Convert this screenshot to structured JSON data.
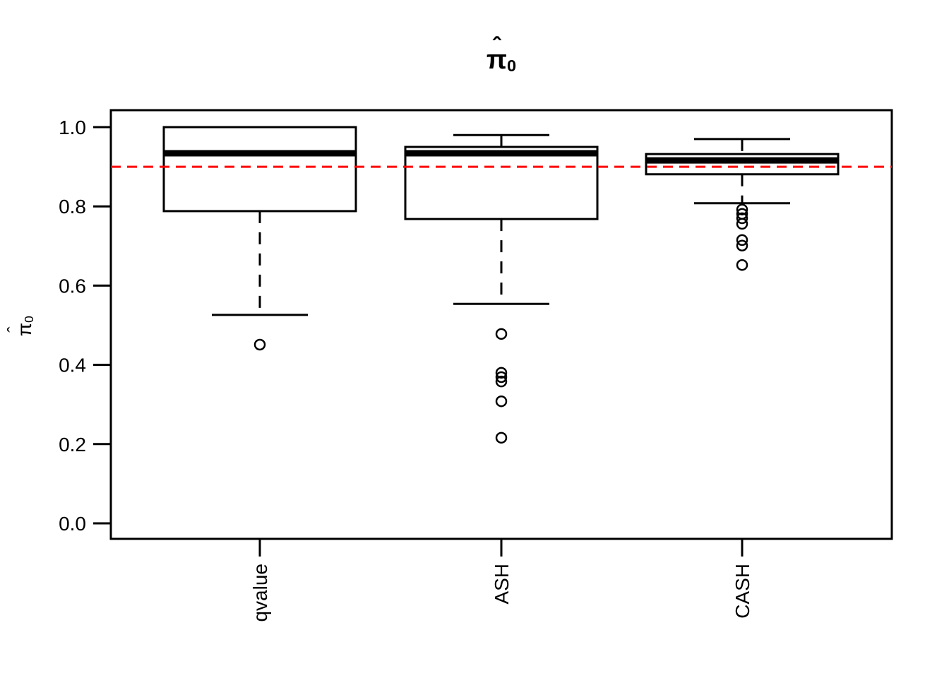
{
  "figure": {
    "title": {
      "hat": "ˆ",
      "base": "π",
      "sub": "0",
      "text": "π̂₀"
    },
    "y_axis": {
      "label": {
        "hat": "ˆ",
        "base": "π",
        "sub": "0",
        "text": "π̂₀"
      },
      "tick_labels": [
        "0.0",
        "0.2",
        "0.4",
        "0.6",
        "0.8",
        "1.0"
      ]
    },
    "x_axis": {
      "tick_labels": [
        "qvalue",
        "ASH",
        "CASH"
      ]
    }
  },
  "chart_data": {
    "type": "boxplot",
    "title": "π̂₀",
    "xlabel": "",
    "ylabel": "π̂₀",
    "categories": [
      "qvalue",
      "ASH",
      "CASH"
    ],
    "ylim": [
      0.0,
      1.0
    ],
    "yticks": [
      0.0,
      0.2,
      0.4,
      0.6,
      0.8,
      1.0
    ],
    "grid": false,
    "legend": null,
    "reference_line": {
      "y": 0.9,
      "color": "#FF0000",
      "style": "dashed"
    },
    "line_color": "#000000",
    "series": [
      {
        "name": "qvalue",
        "whisker_low": 0.526,
        "q1": 0.788,
        "median": 0.934,
        "q3": 1.0,
        "whisker_high": 1.0,
        "outliers": [
          0.451
        ]
      },
      {
        "name": "ASH",
        "whisker_low": 0.554,
        "q1": 0.768,
        "median": 0.934,
        "q3": 0.95,
        "whisker_high": 0.98,
        "outliers": [
          0.478,
          0.38,
          0.369,
          0.358,
          0.308,
          0.216
        ]
      },
      {
        "name": "CASH",
        "whisker_low": 0.808,
        "q1": 0.881,
        "median": 0.916,
        "q3": 0.932,
        "whisker_high": 0.97,
        "outliers": [
          0.792,
          0.781,
          0.77,
          0.756,
          0.715,
          0.701,
          0.652
        ]
      }
    ]
  }
}
